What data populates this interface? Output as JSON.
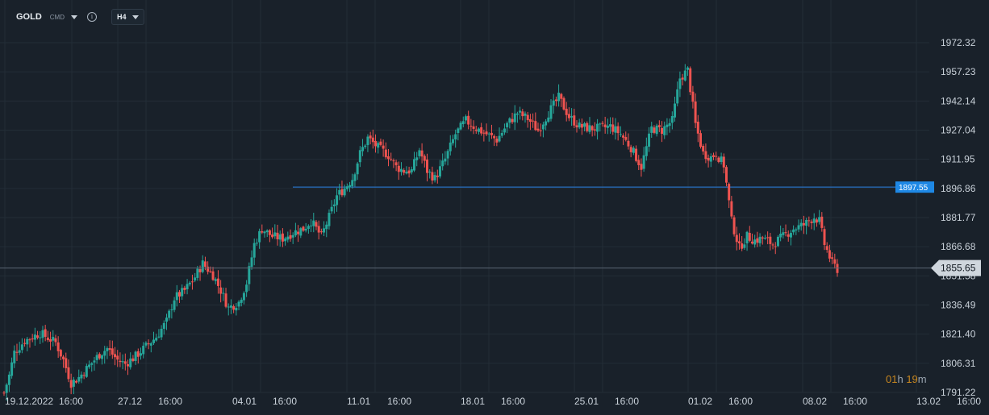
{
  "header": {
    "symbol": "GOLD",
    "symbol_type": "CMD",
    "timeframe": "H4",
    "info_icon": "info-icon"
  },
  "timer": {
    "hours": "01",
    "h_unit": "h",
    "minutes": "19",
    "m_unit": "m"
  },
  "colors": {
    "background": "#19212a",
    "grid": "#232d37",
    "up": "#26a69a",
    "down": "#ef5350",
    "hline": "#2b83e6",
    "hline_label_bg": "#1e88e5",
    "price_line": "#5b6673",
    "price_label_bg": "#cfd6dd"
  },
  "chart_data": {
    "type": "candlestick",
    "y_ticks": [
      "1972.32",
      "1957.23",
      "1942.14",
      "1927.04",
      "1911.95",
      "1896.86",
      "1881.77",
      "1866.68",
      "1851.58",
      "1836.49",
      "1821.40",
      "1806.31",
      "1791.22"
    ],
    "ylim": [
      1791.22,
      1972.32
    ],
    "x_ticks": [
      "19.12.2022",
      "16:00",
      "27.12",
      "16:00",
      "04.01",
      "16:00",
      "11.01",
      "16:00",
      "18.01",
      "16:00",
      "25.01",
      "16:00",
      "01.02",
      "16:00",
      "08.02",
      "16:00",
      "13.02",
      "16:00"
    ],
    "horizontal_line": {
      "value": 1897.55,
      "label": "1897.55"
    },
    "current_price": {
      "value": 1855.65,
      "label": "1855.65"
    },
    "grid": true,
    "anchors": [
      [
        0,
        1791
      ],
      [
        2,
        1800
      ],
      [
        4,
        1812
      ],
      [
        8,
        1818
      ],
      [
        14,
        1822
      ],
      [
        20,
        1817
      ],
      [
        23,
        1808
      ],
      [
        26,
        1796
      ],
      [
        29,
        1799
      ],
      [
        33,
        1805
      ],
      [
        37,
        1811
      ],
      [
        40,
        1814
      ],
      [
        44,
        1808
      ],
      [
        47,
        1806
      ],
      [
        51,
        1810
      ],
      [
        55,
        1815
      ],
      [
        59,
        1820
      ],
      [
        63,
        1828
      ],
      [
        66,
        1840
      ],
      [
        70,
        1844
      ],
      [
        74,
        1851
      ],
      [
        77,
        1858
      ],
      [
        81,
        1852
      ],
      [
        84,
        1844
      ],
      [
        87,
        1835
      ],
      [
        91,
        1838
      ],
      [
        94,
        1848
      ],
      [
        97,
        1868
      ],
      [
        100,
        1876
      ],
      [
        104,
        1872
      ],
      [
        108,
        1871
      ],
      [
        112,
        1874
      ],
      [
        116,
        1876
      ],
      [
        119,
        1880
      ],
      [
        123,
        1872
      ],
      [
        126,
        1882
      ],
      [
        129,
        1893
      ],
      [
        132,
        1897
      ],
      [
        135,
        1902
      ],
      [
        138,
        1915
      ],
      [
        141,
        1923
      ],
      [
        145,
        1918
      ],
      [
        149,
        1914
      ],
      [
        152,
        1908
      ],
      [
        155,
        1906
      ],
      [
        158,
        1906
      ],
      [
        161,
        1917
      ],
      [
        164,
        1906
      ],
      [
        167,
        1902
      ],
      [
        171,
        1912
      ],
      [
        175,
        1925
      ],
      [
        179,
        1932
      ],
      [
        183,
        1928
      ],
      [
        187,
        1925
      ],
      [
        191,
        1922
      ],
      [
        195,
        1930
      ],
      [
        199,
        1936
      ],
      [
        203,
        1933
      ],
      [
        207,
        1927
      ],
      [
        211,
        1936
      ],
      [
        215,
        1944
      ],
      [
        219,
        1934
      ],
      [
        223,
        1929
      ],
      [
        227,
        1928
      ],
      [
        231,
        1928
      ],
      [
        235,
        1929
      ],
      [
        239,
        1925
      ],
      [
        243,
        1918
      ],
      [
        247,
        1908
      ],
      [
        251,
        1928
      ],
      [
        255,
        1927
      ],
      [
        259,
        1932
      ],
      [
        262,
        1954
      ],
      [
        265,
        1958
      ],
      [
        268,
        1930
      ],
      [
        271,
        1915
      ],
      [
        274,
        1913
      ],
      [
        276,
        1915
      ],
      [
        279,
        1909
      ],
      [
        282,
        1880
      ],
      [
        285,
        1866
      ],
      [
        288,
        1872
      ],
      [
        291,
        1870
      ],
      [
        294,
        1871
      ],
      [
        298,
        1868
      ],
      [
        302,
        1872
      ],
      [
        306,
        1876
      ],
      [
        310,
        1878
      ],
      [
        314,
        1882
      ],
      [
        316,
        1880
      ],
      [
        318,
        1868
      ],
      [
        321,
        1858
      ],
      [
        323,
        1855
      ]
    ]
  }
}
